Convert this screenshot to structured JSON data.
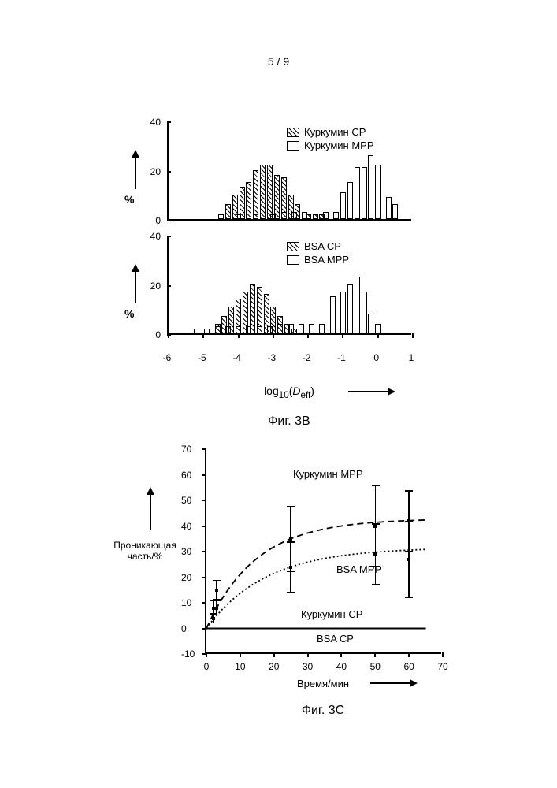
{
  "page_number": "5 / 9",
  "fig3b": {
    "caption": "Фиг. 3B",
    "xlabel_html": "log<sub>10</sub>(<i>D</i><sub>eff</sub>)",
    "ylabel": "%",
    "ymax": 40,
    "ytick_step": 20,
    "xmin": -6,
    "xmax": 1,
    "xtick_step": 1,
    "panels": [
      {
        "legend": [
          {
            "pattern": "hatched",
            "label": "Куркумин  CP"
          },
          {
            "pattern": "plain",
            "label": "Куркумин  MPP"
          }
        ],
        "hatched_series": {
          "x": [
            -4.3,
            -4.1,
            -3.9,
            -3.7,
            -3.5,
            -3.3,
            -3.1,
            -2.9,
            -2.7,
            -2.5,
            -2.3,
            -2.0,
            -1.8,
            -1.6
          ],
          "y": [
            6,
            10,
            13,
            15,
            20,
            22,
            22,
            18,
            17,
            10,
            6,
            2,
            2,
            2
          ]
        },
        "plain_series": {
          "x": [
            -4.5,
            -4.0,
            -3.5,
            -3.0,
            -2.7,
            -2.4,
            -2.1,
            -1.8,
            -1.5,
            -1.2,
            -1.0,
            -0.8,
            -0.6,
            -0.4,
            -0.2,
            0.0,
            0.3,
            0.5
          ],
          "y": [
            2,
            2,
            2,
            2,
            3,
            3,
            3,
            2,
            3,
            3,
            11,
            15,
            21,
            21,
            26,
            22,
            9,
            6
          ]
        }
      },
      {
        "legend": [
          {
            "pattern": "hatched",
            "label": "BSA CP"
          },
          {
            "pattern": "plain",
            "label": "BSA MPP"
          }
        ],
        "hatched_series": {
          "x": [
            -4.6,
            -4.4,
            -4.2,
            -4.0,
            -3.8,
            -3.6,
            -3.4,
            -3.2,
            -3.0,
            -2.8,
            -2.6,
            -2.4
          ],
          "y": [
            4,
            7,
            11,
            14,
            17,
            20,
            19,
            16,
            11,
            7,
            4,
            2
          ]
        },
        "plain_series": {
          "x": [
            -5.2,
            -4.9,
            -4.6,
            -4.3,
            -4.0,
            -3.7,
            -3.4,
            -3.1,
            -2.8,
            -2.5,
            -2.2,
            -1.9,
            -1.6,
            -1.3,
            -1.0,
            -0.8,
            -0.6,
            -0.4,
            -0.2,
            0.0
          ],
          "y": [
            2,
            2,
            3,
            3,
            3,
            3,
            3,
            3,
            4,
            4,
            4,
            4,
            4,
            15,
            17,
            20,
            23,
            17,
            8,
            4
          ]
        }
      }
    ]
  },
  "fig3c": {
    "caption": "Фиг. 3C",
    "xlabel": "Время/мин",
    "ylabel_html": "Проникающая<br>часть/%",
    "ymin": -10,
    "ymax": 70,
    "ytick_step": 10,
    "xmin": 0,
    "xmax": 70,
    "xtick_step": 10,
    "labels": {
      "curcumin_mpp": "Куркумин  MPP",
      "bsa_mpp": "BSA  MPP",
      "curcumin_cp": "Куркумин  CP",
      "bsa_cp": "BSA  CP"
    },
    "curves": {
      "curcumin_mpp": {
        "dash": "8,5",
        "x": [
          0,
          2,
          3,
          25,
          50,
          60
        ],
        "y": [
          0,
          8,
          15,
          35,
          40,
          42
        ]
      },
      "bsa_mpp": {
        "dash": "2,3",
        "x": [
          0,
          2,
          3,
          25,
          50,
          60
        ],
        "y": [
          0,
          4,
          8,
          24,
          29,
          31
        ]
      }
    },
    "points_curcumin_mpp": [
      {
        "x": 2,
        "y": 8,
        "err": 3
      },
      {
        "x": 3,
        "y": 15,
        "err": 4
      },
      {
        "x": 25,
        "y": 35,
        "err": 13
      },
      {
        "x": 50,
        "y": 40,
        "err": 16
      },
      {
        "x": 60,
        "y": 42,
        "err": 12
      }
    ],
    "points_bsa_mpp": [
      {
        "x": 2,
        "y": 4,
        "err": 2
      },
      {
        "x": 3,
        "y": 8,
        "err": 3
      },
      {
        "x": 25,
        "y": 24,
        "err": 10
      },
      {
        "x": 50,
        "y": 29,
        "err": 12
      },
      {
        "x": 60,
        "y": 27,
        "err": 15
      }
    ],
    "flat_line_y": 0
  },
  "colors": {
    "stroke": "#000000",
    "background": "#ffffff"
  }
}
